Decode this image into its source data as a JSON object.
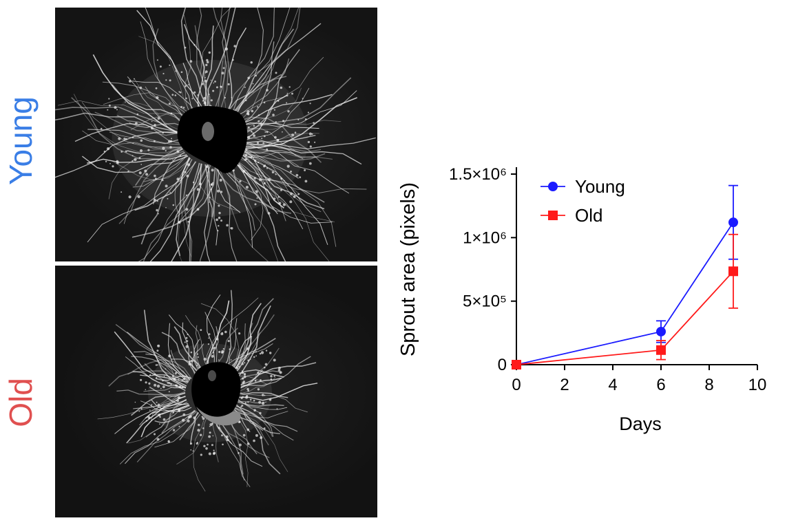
{
  "panels": {
    "young_label": "Young",
    "old_label": "Old",
    "young_color": "#3a7ee6",
    "old_color": "#e05050"
  },
  "chart_data": {
    "type": "line",
    "title": "",
    "xlabel": "Days",
    "ylabel": "Sprout area (pixels)",
    "xlim": [
      0,
      10
    ],
    "ylim": [
      0,
      1500000
    ],
    "x_ticks": [
      0,
      2,
      4,
      6,
      8,
      10
    ],
    "y_ticks": [
      {
        "value": 0,
        "label": "0"
      },
      {
        "value": 500000,
        "label": "5×10⁵"
      },
      {
        "value": 1000000,
        "label": "1×10⁶"
      },
      {
        "value": 1500000,
        "label": "1.5×10⁶"
      }
    ],
    "legend_position": "top-left",
    "series": [
      {
        "name": "Young",
        "color": "#1a1aff",
        "marker": "circle",
        "points": [
          {
            "x": 0,
            "y": 0,
            "err": 0
          },
          {
            "x": 6,
            "y": 260000,
            "err": 85000
          },
          {
            "x": 9,
            "y": 1120000,
            "err": 290000
          }
        ]
      },
      {
        "name": "Old",
        "color": "#ff1a1a",
        "marker": "square",
        "points": [
          {
            "x": 0,
            "y": 0,
            "err": 0
          },
          {
            "x": 6,
            "y": 115000,
            "err": 75000
          },
          {
            "x": 9,
            "y": 735000,
            "err": 290000
          }
        ]
      }
    ]
  }
}
